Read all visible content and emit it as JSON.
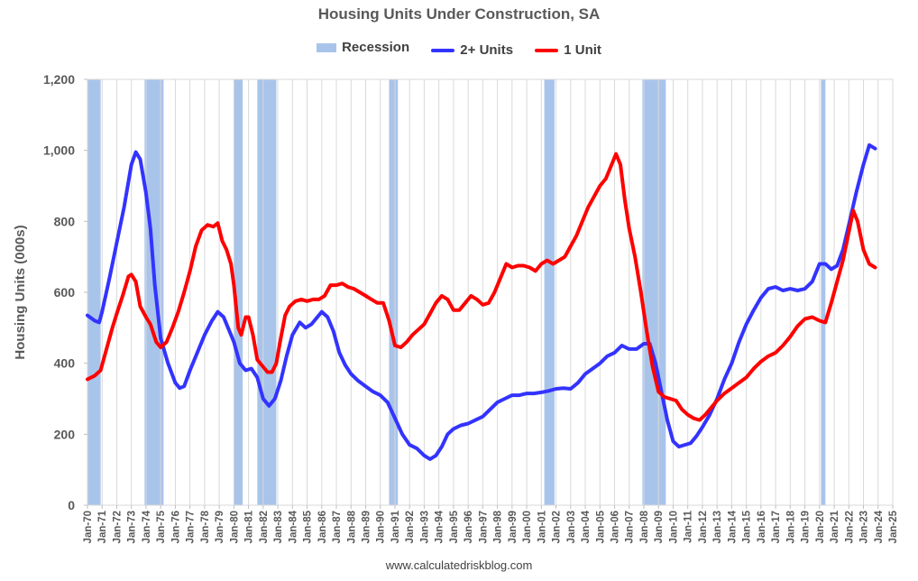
{
  "chart_data": {
    "type": "line",
    "title": "Housing Units Under Construction, SA",
    "ylabel": "Housing Units (000s)",
    "xlabel": "",
    "ylim": [
      0,
      1200
    ],
    "yticks": [
      0,
      200,
      400,
      600,
      800,
      1000,
      1200
    ],
    "ytick_labels": [
      "0",
      "200",
      "400",
      "600",
      "800",
      "1,000",
      "1,200"
    ],
    "xlim": [
      1970,
      2025
    ],
    "xtick_labels": [
      "Jan-70",
      "Jan-71",
      "Jan-72",
      "Jan-73",
      "Jan-74",
      "Jan-75",
      "Jan-76",
      "Jan-77",
      "Jan-78",
      "Jan-79",
      "Jan-80",
      "Jan-81",
      "Jan-82",
      "Jan-83",
      "Jan-84",
      "Jan-85",
      "Jan-86",
      "Jan-87",
      "Jan-88",
      "Jan-89",
      "Jan-90",
      "Jan-91",
      "Jan-92",
      "Jan-93",
      "Jan-94",
      "Jan-95",
      "Jan-96",
      "Jan-97",
      "Jan-98",
      "Jan-99",
      "Jan-00",
      "Jan-01",
      "Jan-02",
      "Jan-03",
      "Jan-04",
      "Jan-05",
      "Jan-06",
      "Jan-07",
      "Jan-08",
      "Jan-09",
      "Jan-10",
      "Jan-11",
      "Jan-12",
      "Jan-13",
      "Jan-14",
      "Jan-15",
      "Jan-16",
      "Jan-17",
      "Jan-18",
      "Jan-19",
      "Jan-20",
      "Jan-21",
      "Jan-22",
      "Jan-23",
      "Jan-24",
      "Jan-25"
    ],
    "grid": "vertical",
    "legend_position": "top",
    "legend": [
      {
        "name": "Recession",
        "kind": "band",
        "color": "#a9c4eb"
      },
      {
        "name": "2+ Units",
        "kind": "line",
        "color": "#3333ff"
      },
      {
        "name": "1 Unit",
        "kind": "line",
        "color": "#ff0000"
      }
    ],
    "recessions": [
      [
        1970.0,
        1970.9
      ],
      [
        1973.9,
        1975.2
      ],
      [
        1980.0,
        1980.6
      ],
      [
        1981.6,
        1982.9
      ],
      [
        1990.6,
        1991.2
      ],
      [
        2001.2,
        2001.9
      ],
      [
        2007.9,
        2009.5
      ],
      [
        2020.1,
        2020.4
      ]
    ],
    "series": [
      {
        "name": "2+ Units",
        "color": "#3333ff",
        "points": [
          [
            1970.0,
            535
          ],
          [
            1970.5,
            520
          ],
          [
            1970.8,
            515
          ],
          [
            1971.0,
            545
          ],
          [
            1971.5,
            640
          ],
          [
            1972.0,
            740
          ],
          [
            1972.5,
            840
          ],
          [
            1973.0,
            960
          ],
          [
            1973.3,
            995
          ],
          [
            1973.6,
            975
          ],
          [
            1974.0,
            880
          ],
          [
            1974.3,
            780
          ],
          [
            1974.6,
            620
          ],
          [
            1975.0,
            470
          ],
          [
            1975.5,
            400
          ],
          [
            1976.0,
            345
          ],
          [
            1976.3,
            330
          ],
          [
            1976.6,
            335
          ],
          [
            1977.0,
            380
          ],
          [
            1977.5,
            430
          ],
          [
            1978.0,
            480
          ],
          [
            1978.5,
            520
          ],
          [
            1978.9,
            545
          ],
          [
            1979.3,
            530
          ],
          [
            1979.6,
            500
          ],
          [
            1980.0,
            460
          ],
          [
            1980.4,
            400
          ],
          [
            1980.8,
            380
          ],
          [
            1981.2,
            385
          ],
          [
            1981.6,
            360
          ],
          [
            1982.0,
            300
          ],
          [
            1982.4,
            280
          ],
          [
            1982.8,
            300
          ],
          [
            1983.2,
            350
          ],
          [
            1983.6,
            420
          ],
          [
            1984.0,
            480
          ],
          [
            1984.5,
            515
          ],
          [
            1984.9,
            500
          ],
          [
            1985.3,
            510
          ],
          [
            1985.7,
            530
          ],
          [
            1986.0,
            545
          ],
          [
            1986.4,
            530
          ],
          [
            1986.8,
            490
          ],
          [
            1987.2,
            430
          ],
          [
            1987.6,
            395
          ],
          [
            1988.0,
            370
          ],
          [
            1988.5,
            350
          ],
          [
            1989.0,
            335
          ],
          [
            1989.5,
            320
          ],
          [
            1990.0,
            310
          ],
          [
            1990.5,
            290
          ],
          [
            1991.0,
            245
          ],
          [
            1991.5,
            200
          ],
          [
            1992.0,
            170
          ],
          [
            1992.5,
            160
          ],
          [
            1993.0,
            140
          ],
          [
            1993.4,
            130
          ],
          [
            1993.8,
            140
          ],
          [
            1994.2,
            165
          ],
          [
            1994.6,
            200
          ],
          [
            1995.0,
            215
          ],
          [
            1995.5,
            225
          ],
          [
            1996.0,
            230
          ],
          [
            1996.5,
            240
          ],
          [
            1997.0,
            250
          ],
          [
            1997.5,
            270
          ],
          [
            1998.0,
            290
          ],
          [
            1998.5,
            300
          ],
          [
            1999.0,
            310
          ],
          [
            1999.5,
            310
          ],
          [
            2000.0,
            315
          ],
          [
            2000.5,
            315
          ],
          [
            2001.0,
            318
          ],
          [
            2001.5,
            322
          ],
          [
            2002.0,
            328
          ],
          [
            2002.5,
            330
          ],
          [
            2003.0,
            328
          ],
          [
            2003.5,
            345
          ],
          [
            2004.0,
            370
          ],
          [
            2004.5,
            385
          ],
          [
            2005.0,
            400
          ],
          [
            2005.5,
            420
          ],
          [
            2006.0,
            430
          ],
          [
            2006.5,
            450
          ],
          [
            2007.0,
            440
          ],
          [
            2007.5,
            440
          ],
          [
            2008.0,
            455
          ],
          [
            2008.4,
            455
          ],
          [
            2008.8,
            400
          ],
          [
            2009.2,
            320
          ],
          [
            2009.6,
            240
          ],
          [
            2010.0,
            180
          ],
          [
            2010.4,
            165
          ],
          [
            2010.8,
            170
          ],
          [
            2011.2,
            175
          ],
          [
            2011.6,
            195
          ],
          [
            2012.0,
            220
          ],
          [
            2012.5,
            255
          ],
          [
            2013.0,
            300
          ],
          [
            2013.5,
            355
          ],
          [
            2014.0,
            400
          ],
          [
            2014.5,
            460
          ],
          [
            2015.0,
            510
          ],
          [
            2015.5,
            550
          ],
          [
            2016.0,
            585
          ],
          [
            2016.5,
            610
          ],
          [
            2017.0,
            615
          ],
          [
            2017.5,
            605
          ],
          [
            2018.0,
            610
          ],
          [
            2018.5,
            605
          ],
          [
            2019.0,
            610
          ],
          [
            2019.5,
            630
          ],
          [
            2020.0,
            680
          ],
          [
            2020.4,
            680
          ],
          [
            2020.8,
            665
          ],
          [
            2021.2,
            675
          ],
          [
            2021.6,
            720
          ],
          [
            2022.0,
            790
          ],
          [
            2022.5,
            880
          ],
          [
            2023.0,
            960
          ],
          [
            2023.4,
            1015
          ],
          [
            2023.8,
            1005
          ]
        ]
      },
      {
        "name": "1 Unit",
        "color": "#ff0000",
        "points": [
          [
            1970.0,
            355
          ],
          [
            1970.5,
            365
          ],
          [
            1970.9,
            380
          ],
          [
            1971.3,
            440
          ],
          [
            1971.7,
            500
          ],
          [
            1972.0,
            540
          ],
          [
            1972.4,
            590
          ],
          [
            1972.8,
            645
          ],
          [
            1973.0,
            650
          ],
          [
            1973.3,
            630
          ],
          [
            1973.6,
            560
          ],
          [
            1974.0,
            530
          ],
          [
            1974.3,
            510
          ],
          [
            1974.7,
            460
          ],
          [
            1975.0,
            445
          ],
          [
            1975.4,
            460
          ],
          [
            1975.8,
            500
          ],
          [
            1976.2,
            545
          ],
          [
            1976.6,
            600
          ],
          [
            1977.0,
            660
          ],
          [
            1977.4,
            730
          ],
          [
            1977.8,
            775
          ],
          [
            1978.2,
            790
          ],
          [
            1978.6,
            785
          ],
          [
            1978.9,
            795
          ],
          [
            1979.2,
            745
          ],
          [
            1979.5,
            720
          ],
          [
            1979.8,
            680
          ],
          [
            1980.0,
            620
          ],
          [
            1980.3,
            500
          ],
          [
            1980.5,
            480
          ],
          [
            1980.8,
            530
          ],
          [
            1981.0,
            530
          ],
          [
            1981.3,
            480
          ],
          [
            1981.6,
            410
          ],
          [
            1982.0,
            390
          ],
          [
            1982.3,
            375
          ],
          [
            1982.6,
            375
          ],
          [
            1982.9,
            400
          ],
          [
            1983.2,
            470
          ],
          [
            1983.5,
            535
          ],
          [
            1983.8,
            560
          ],
          [
            1984.2,
            575
          ],
          [
            1984.6,
            580
          ],
          [
            1985.0,
            575
          ],
          [
            1985.4,
            580
          ],
          [
            1985.8,
            580
          ],
          [
            1986.2,
            590
          ],
          [
            1986.6,
            620
          ],
          [
            1987.0,
            620
          ],
          [
            1987.4,
            625
          ],
          [
            1987.8,
            615
          ],
          [
            1988.2,
            610
          ],
          [
            1988.6,
            600
          ],
          [
            1989.0,
            590
          ],
          [
            1989.4,
            580
          ],
          [
            1989.8,
            570
          ],
          [
            1990.2,
            570
          ],
          [
            1990.6,
            520
          ],
          [
            1991.0,
            450
          ],
          [
            1991.4,
            445
          ],
          [
            1991.8,
            460
          ],
          [
            1992.2,
            480
          ],
          [
            1992.6,
            495
          ],
          [
            1993.0,
            510
          ],
          [
            1993.4,
            540
          ],
          [
            1993.8,
            570
          ],
          [
            1994.2,
            590
          ],
          [
            1994.6,
            580
          ],
          [
            1995.0,
            550
          ],
          [
            1995.4,
            550
          ],
          [
            1995.8,
            570
          ],
          [
            1996.2,
            590
          ],
          [
            1996.6,
            580
          ],
          [
            1997.0,
            565
          ],
          [
            1997.4,
            570
          ],
          [
            1997.8,
            600
          ],
          [
            1998.2,
            640
          ],
          [
            1998.6,
            680
          ],
          [
            1999.0,
            670
          ],
          [
            1999.4,
            675
          ],
          [
            1999.8,
            675
          ],
          [
            2000.2,
            670
          ],
          [
            2000.6,
            660
          ],
          [
            2001.0,
            680
          ],
          [
            2001.4,
            690
          ],
          [
            2001.8,
            680
          ],
          [
            2002.2,
            690
          ],
          [
            2002.6,
            700
          ],
          [
            2003.0,
            730
          ],
          [
            2003.4,
            760
          ],
          [
            2003.8,
            800
          ],
          [
            2004.2,
            840
          ],
          [
            2004.6,
            870
          ],
          [
            2005.0,
            900
          ],
          [
            2005.4,
            920
          ],
          [
            2005.8,
            960
          ],
          [
            2006.1,
            990
          ],
          [
            2006.4,
            960
          ],
          [
            2006.7,
            860
          ],
          [
            2007.0,
            780
          ],
          [
            2007.4,
            700
          ],
          [
            2007.8,
            600
          ],
          [
            2008.2,
            490
          ],
          [
            2008.6,
            390
          ],
          [
            2009.0,
            320
          ],
          [
            2009.4,
            305
          ],
          [
            2009.8,
            300
          ],
          [
            2010.2,
            295
          ],
          [
            2010.6,
            270
          ],
          [
            2011.0,
            255
          ],
          [
            2011.4,
            245
          ],
          [
            2011.8,
            240
          ],
          [
            2012.2,
            255
          ],
          [
            2012.6,
            275
          ],
          [
            2013.0,
            295
          ],
          [
            2013.5,
            315
          ],
          [
            2014.0,
            330
          ],
          [
            2014.5,
            345
          ],
          [
            2015.0,
            360
          ],
          [
            2015.5,
            385
          ],
          [
            2016.0,
            405
          ],
          [
            2016.5,
            420
          ],
          [
            2017.0,
            430
          ],
          [
            2017.5,
            450
          ],
          [
            2018.0,
            475
          ],
          [
            2018.5,
            505
          ],
          [
            2019.0,
            525
          ],
          [
            2019.5,
            530
          ],
          [
            2020.0,
            520
          ],
          [
            2020.4,
            515
          ],
          [
            2020.8,
            570
          ],
          [
            2021.2,
            630
          ],
          [
            2021.6,
            690
          ],
          [
            2022.0,
            770
          ],
          [
            2022.3,
            830
          ],
          [
            2022.6,
            800
          ],
          [
            2023.0,
            720
          ],
          [
            2023.4,
            680
          ],
          [
            2023.8,
            670
          ]
        ]
      }
    ]
  },
  "footer": {
    "source": "www.calculatedriskblog.com"
  }
}
